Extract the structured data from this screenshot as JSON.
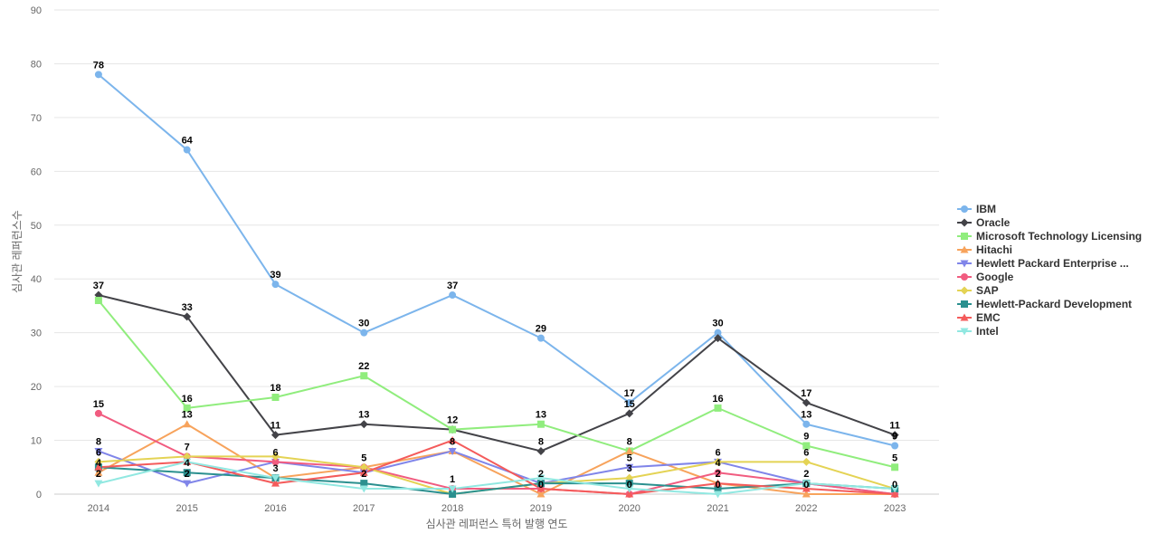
{
  "chart_data": {
    "type": "line",
    "title": "",
    "xlabel": "심사관 레퍼런스 특허 발행 연도",
    "ylabel": "심사관 레퍼런스수",
    "ylim": [
      0,
      90
    ],
    "yticks": [
      0,
      10,
      20,
      30,
      40,
      50,
      60,
      70,
      80,
      90
    ],
    "grid": true,
    "legend_position": "right",
    "categories": [
      "2014",
      "2015",
      "2016",
      "2017",
      "2018",
      "2019",
      "2020",
      "2021",
      "2022",
      "2023"
    ],
    "series": [
      {
        "name": "IBM",
        "color": "#7cb5ec",
        "marker": "circle",
        "values": [
          78,
          64,
          39,
          30,
          37,
          29,
          17,
          30,
          13,
          9
        ]
      },
      {
        "name": "Oracle",
        "color": "#434348",
        "marker": "diamond",
        "values": [
          37,
          33,
          11,
          13,
          12,
          8,
          15,
          29,
          17,
          11
        ]
      },
      {
        "name": "Microsoft Technology Licensing",
        "color": "#90ed7d",
        "marker": "square",
        "values": [
          36,
          16,
          18,
          22,
          12,
          13,
          8,
          16,
          9,
          5
        ]
      },
      {
        "name": "Hitachi",
        "color": "#f7a35c",
        "marker": "triangle",
        "values": [
          4,
          13,
          3,
          5,
          8,
          0,
          8,
          2,
          0,
          0
        ]
      },
      {
        "name": "Hewlett Packard Enterprise ...",
        "color": "#8085e9",
        "marker": "triangle-down",
        "values": [
          8,
          2,
          6,
          4,
          8,
          2,
          5,
          6,
          2,
          0
        ]
      },
      {
        "name": "Google",
        "color": "#f15c80",
        "marker": "circle",
        "values": [
          15,
          7,
          6,
          5,
          1,
          1,
          0,
          4,
          2,
          0
        ]
      },
      {
        "name": "SAP",
        "color": "#e4d354",
        "marker": "diamond",
        "values": [
          6,
          7,
          7,
          5,
          0,
          2,
          3,
          6,
          6,
          1
        ]
      },
      {
        "name": "Hewlett-Packard Development",
        "color": "#2b908f",
        "marker": "square",
        "values": [
          5,
          4,
          3,
          2,
          0,
          2,
          2,
          1,
          2,
          1
        ]
      },
      {
        "name": "EMC",
        "color": "#f45b5b",
        "marker": "triangle",
        "values": [
          5,
          6,
          2,
          4,
          10,
          1,
          0,
          2,
          1,
          0
        ]
      },
      {
        "name": "Intel",
        "color": "#91e8e1",
        "marker": "triangle-down",
        "values": [
          2,
          6,
          3,
          1,
          1,
          3,
          1,
          0,
          2,
          1
        ]
      }
    ],
    "data_labels": [
      {
        "category": "2014",
        "value": 78,
        "text": "78"
      },
      {
        "category": "2014",
        "value": 37,
        "text": "37"
      },
      {
        "category": "2014",
        "value": 15,
        "text": "15"
      },
      {
        "category": "2014",
        "value": 8,
        "text": "8"
      },
      {
        "category": "2014",
        "value": 6,
        "text": "6"
      },
      {
        "category": "2014",
        "value": 4,
        "text": "4"
      },
      {
        "category": "2014",
        "value": 2,
        "text": "2"
      },
      {
        "category": "2015",
        "value": 64,
        "text": "64"
      },
      {
        "category": "2015",
        "value": 33,
        "text": "33"
      },
      {
        "category": "2015",
        "value": 16,
        "text": "16"
      },
      {
        "category": "2015",
        "value": 13,
        "text": "13"
      },
      {
        "category": "2015",
        "value": 7,
        "text": "7"
      },
      {
        "category": "2015",
        "value": 4,
        "text": "4"
      },
      {
        "category": "2015",
        "value": 2,
        "text": "2"
      },
      {
        "category": "2016",
        "value": 39,
        "text": "39"
      },
      {
        "category": "2016",
        "value": 18,
        "text": "18"
      },
      {
        "category": "2016",
        "value": 11,
        "text": "11"
      },
      {
        "category": "2016",
        "value": 6,
        "text": "6"
      },
      {
        "category": "2016",
        "value": 3,
        "text": "3"
      },
      {
        "category": "2017",
        "value": 30,
        "text": "30"
      },
      {
        "category": "2017",
        "value": 22,
        "text": "22"
      },
      {
        "category": "2017",
        "value": 13,
        "text": "13"
      },
      {
        "category": "2017",
        "value": 5,
        "text": "5"
      },
      {
        "category": "2017",
        "value": 2,
        "text": "2"
      },
      {
        "category": "2018",
        "value": 37,
        "text": "37"
      },
      {
        "category": "2018",
        "value": 12,
        "text": "12"
      },
      {
        "category": "2018",
        "value": 8,
        "text": "8"
      },
      {
        "category": "2018",
        "value": 1,
        "text": "1"
      },
      {
        "category": "2019",
        "value": 29,
        "text": "29"
      },
      {
        "category": "2019",
        "value": 13,
        "text": "13"
      },
      {
        "category": "2019",
        "value": 8,
        "text": "8"
      },
      {
        "category": "2019",
        "value": 2,
        "text": "2"
      },
      {
        "category": "2019",
        "value": 0,
        "text": "0"
      },
      {
        "category": "2020",
        "value": 17,
        "text": "17"
      },
      {
        "category": "2020",
        "value": 15,
        "text": "15"
      },
      {
        "category": "2020",
        "value": 8,
        "text": "8"
      },
      {
        "category": "2020",
        "value": 5,
        "text": "5"
      },
      {
        "category": "2020",
        "value": 3,
        "text": "3"
      },
      {
        "category": "2020",
        "value": 0,
        "text": "0"
      },
      {
        "category": "2021",
        "value": 30,
        "text": "30"
      },
      {
        "category": "2021",
        "value": 16,
        "text": "16"
      },
      {
        "category": "2021",
        "value": 6,
        "text": "6"
      },
      {
        "category": "2021",
        "value": 4,
        "text": "4"
      },
      {
        "category": "2021",
        "value": 2,
        "text": "2"
      },
      {
        "category": "2021",
        "value": 0,
        "text": "0"
      },
      {
        "category": "2022",
        "value": 17,
        "text": "17"
      },
      {
        "category": "2022",
        "value": 13,
        "text": "13"
      },
      {
        "category": "2022",
        "value": 9,
        "text": "9"
      },
      {
        "category": "2022",
        "value": 6,
        "text": "6"
      },
      {
        "category": "2022",
        "value": 2,
        "text": "2"
      },
      {
        "category": "2022",
        "value": 0,
        "text": "0"
      },
      {
        "category": "2023",
        "value": 11,
        "text": "11"
      },
      {
        "category": "2023",
        "value": 9,
        "text": "9"
      },
      {
        "category": "2023",
        "value": 5,
        "text": "5"
      },
      {
        "category": "2023",
        "value": 0,
        "text": "0"
      }
    ]
  }
}
